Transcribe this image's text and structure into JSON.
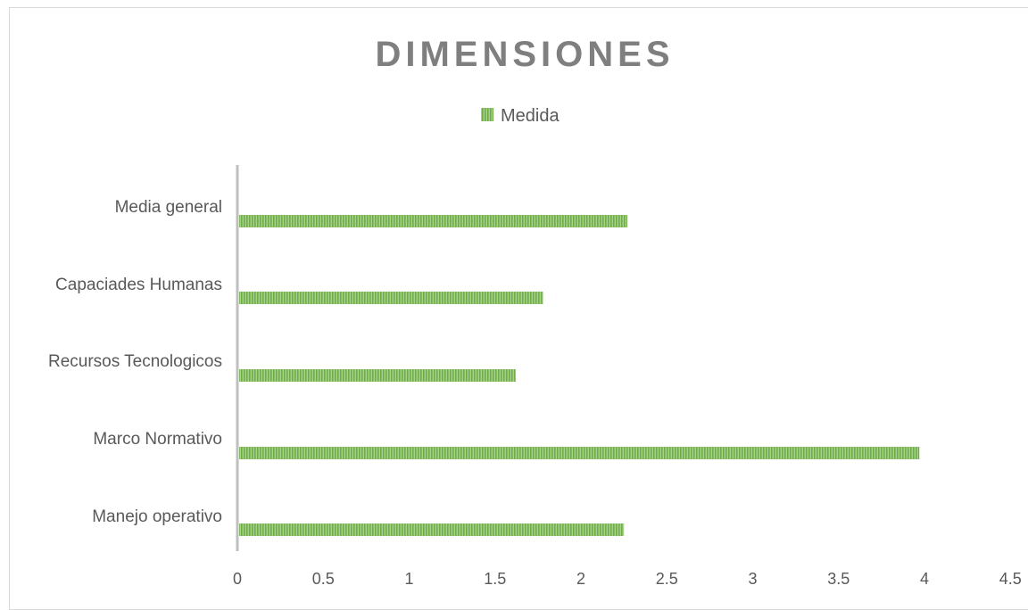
{
  "chart_data": {
    "type": "bar",
    "orientation": "horizontal",
    "title": "DIMENSIONES",
    "categories": [
      "Manejo operativo",
      "Marco Normativo",
      "Recursos Tecnologicos",
      "Capaciades Humanas",
      "Media general"
    ],
    "series": [
      {
        "name": "Medida",
        "values": [
          2.25,
          3.97,
          1.62,
          1.78,
          2.27
        ]
      }
    ],
    "xlim": [
      0,
      4.5
    ],
    "xticks": [
      "0",
      "0.5",
      "1",
      "1.5",
      "2",
      "2.5",
      "3",
      "3.5",
      "4",
      "4.5"
    ],
    "legend_position": "top",
    "grid": false,
    "bar_color": "#70ad47",
    "bar_stripe_color": "#a9d18e"
  }
}
